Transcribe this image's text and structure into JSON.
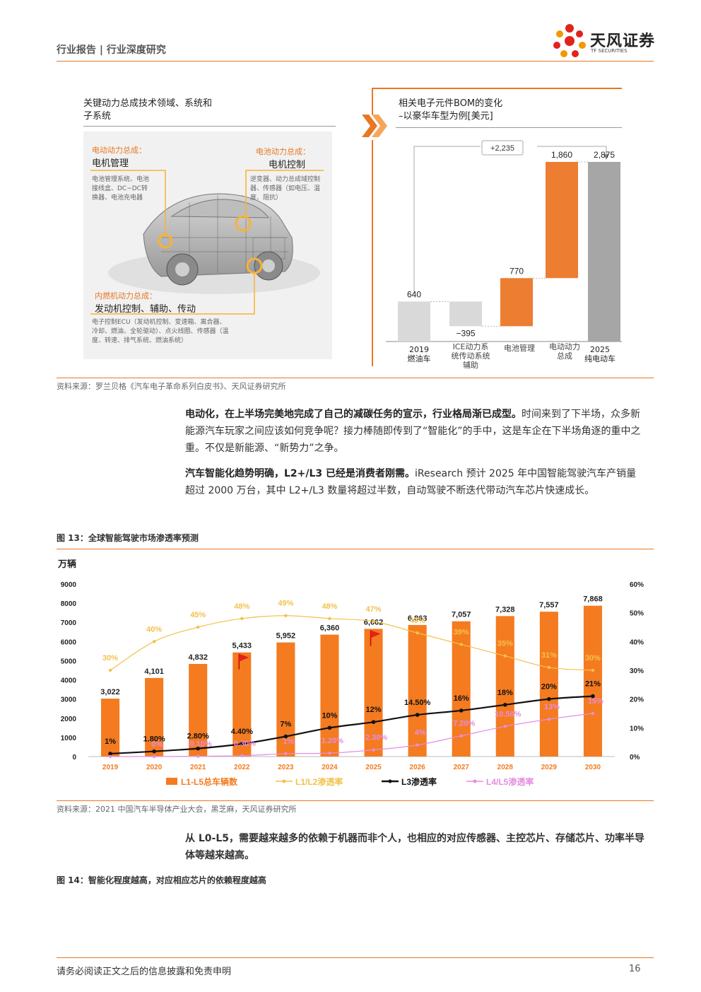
{
  "header": {
    "title": "行业报告 | 行业深度研究",
    "brand_name": "天风证券",
    "brand_en": "TF SECURITIES"
  },
  "left_panel": {
    "title_line1": "关键动力总成技术领域、系统和",
    "title_line2": "子系统",
    "ev_label": "电动动力总成：",
    "ev_bold": "电机管理",
    "ev_desc_1": "电池管理系统、电池",
    "ev_desc_2": "接线盒、DC−DC转",
    "ev_desc_3": "换器、电池充电器",
    "bat_label": "电池动力总成：",
    "bat_bold": "电机控制",
    "bat_desc_1": "逆变器、动力总成域控制",
    "bat_desc_2": "器、传感器（如电压、温",
    "bat_desc_3": "度、阻抗）",
    "ice_label": "内燃机动力总成：",
    "ice_bold": "发动机控制、辅助、传动",
    "ice_desc_1": "电子控制ECU（发动机控制、变速箱、离合器、",
    "ice_desc_2": "冷却、燃油、全轮驱动）、点火线圈、传感器（温",
    "ice_desc_3": "度、转速、排气系统、燃油系统）"
  },
  "right_panel": {
    "title_line1": "相关电子元件BOM的变化",
    "title_line2": "–以豪华车型为例[美元]",
    "delta_label": "+2,235",
    "bars": [
      {
        "label_1": "2019",
        "label_2": "燃油车",
        "value": "640",
        "val": 640
      },
      {
        "label_1": "ICE动力系",
        "label_2": "统传动系统",
        "label_3": "辅助",
        "value": "−395",
        "val": -395
      },
      {
        "label_1": "电池管理",
        "value": "770",
        "val": 770
      },
      {
        "label_1": "电动动力",
        "label_2": "总成",
        "value": "1,860",
        "val": 1860
      },
      {
        "label_1": "2025",
        "label_2": "纯电动车",
        "value": "2,875",
        "val": 2875
      }
    ]
  },
  "source_1": "资料来源：罗兰贝格《汽车电子革命系列白皮书》、天风证券研究所",
  "para_1_bold": "电动化，在上半场完美地完成了自己的减碳任务的宣示，行业格局渐已成型。",
  "para_1_rest": "时间来到了下半场，众多新能源汽车玩家之间应该如何竞争呢？接力棒随即传到了“智能化”的手中，这是车企在下半场角逐的重中之重。不仅是新能源、“新势力”之争。",
  "para_2_bold": "汽车智能化趋势明确，L2+/L3 已经是消费者刚需。",
  "para_2_rest": "iResearch 预计 2025 年中国智能驾驶汽车产销量超过 2000 万台，其中 L2+/L3 数量将超过半数，自动驾驶不断迭代带动汽车芯片快速成长。",
  "fig13_caption": "图 13：全球智能驾驶市场渗透率预测",
  "chart_data": {
    "type": "bar",
    "y_unit": "万辆",
    "categories": [
      "2019",
      "2020",
      "2021",
      "2022",
      "2023",
      "2024",
      "2025",
      "2026",
      "2027",
      "2028",
      "2029",
      "2030"
    ],
    "ylim": [
      0,
      9000
    ],
    "y2lim": [
      0,
      60
    ],
    "y_ticks": [
      "0",
      "1000",
      "2000",
      "3000",
      "4000",
      "5000",
      "6000",
      "7000",
      "8000",
      "9000"
    ],
    "y2_ticks": [
      "0%",
      "10%",
      "20%",
      "30%",
      "40%",
      "50%",
      "60%"
    ],
    "bar_series": {
      "name": "L1-L5总车辆数",
      "color": "#f47b20",
      "values": [
        3022,
        4101,
        4832,
        5433,
        5952,
        6360,
        6662,
        6863,
        7057,
        7328,
        7557,
        7868
      ],
      "labels": [
        "3,022",
        "4,101",
        "4,832",
        "5,433",
        "5,952",
        "6,360",
        "6,662",
        "6,863",
        "7,057",
        "7,328",
        "7,557",
        "7,868"
      ]
    },
    "line_series": [
      {
        "name": "L1/L2渗透率",
        "color": "#f3c14b",
        "values": [
          30,
          40,
          45,
          48,
          49,
          48,
          47,
          43,
          39,
          35,
          31,
          30
        ],
        "labels": [
          "30%",
          "40%",
          "45%",
          "48%",
          "49%",
          "48%",
          "47%",
          "43%",
          "39%",
          "35%",
          "31%",
          "30%"
        ]
      },
      {
        "name": "L3渗透率",
        "color": "#111111",
        "values": [
          1,
          1.8,
          2.8,
          4.4,
          7,
          10,
          12,
          14.5,
          16,
          18,
          20,
          21
        ],
        "labels": [
          "1%",
          "1.80%",
          "2.80%",
          "4.40%",
          "7%",
          "10%",
          "12%",
          "14.50%",
          "16%",
          "18%",
          "20%",
          "21%"
        ]
      },
      {
        "name": "L4/L5渗透率",
        "color": "#e58de0",
        "values": [
          0,
          0,
          0.1,
          0.3,
          1,
          1.2,
          2.3,
          4,
          7.2,
          10.5,
          13,
          15
        ],
        "labels": [
          "",
          "0%",
          "0.10%",
          "0.30%",
          "1%",
          "1.20%",
          "2.30%",
          "4%",
          "7.20%",
          "10.50%",
          "13%",
          "15%"
        ]
      }
    ]
  },
  "source_2": "资料来源：2021 中国汽车半导体产业大会，黑芝麻，天风证券研究所",
  "para_3": "从 L0-L5，需要越来越多的依赖于机器而非个人，也相应的对应传感器、主控芯片、存储芯片、功率半导体等越来越高。",
  "fig14_caption": "图 14：智能化程度越高，对应相应芯片的依赖程度越高",
  "footer": {
    "disclaimer": "请务必阅读正文之后的信息披露和免责申明",
    "page": "16"
  }
}
